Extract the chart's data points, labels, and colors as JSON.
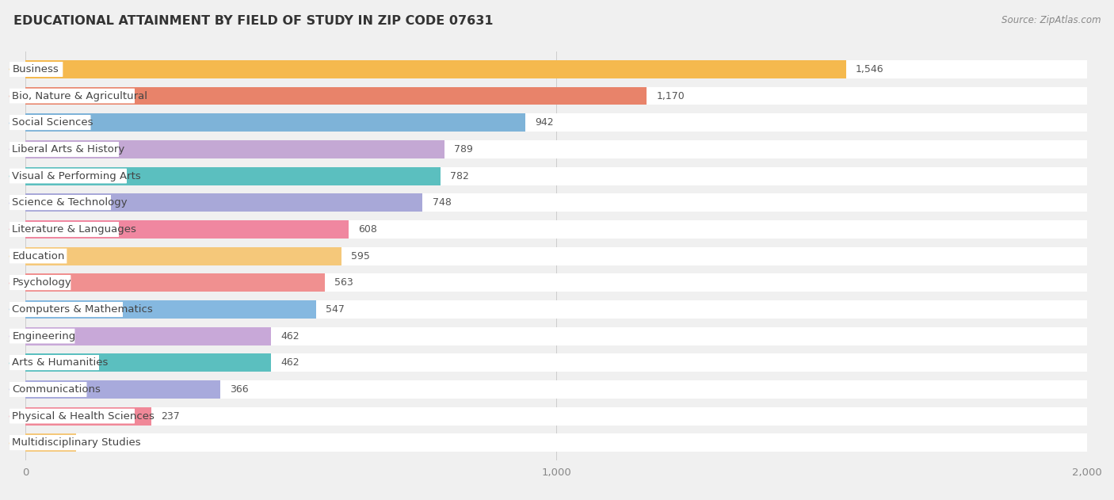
{
  "title": "EDUCATIONAL ATTAINMENT BY FIELD OF STUDY IN ZIP CODE 07631",
  "source": "Source: ZipAtlas.com",
  "categories": [
    "Business",
    "Bio, Nature & Agricultural",
    "Social Sciences",
    "Liberal Arts & History",
    "Visual & Performing Arts",
    "Science & Technology",
    "Literature & Languages",
    "Education",
    "Psychology",
    "Computers & Mathematics",
    "Engineering",
    "Arts & Humanities",
    "Communications",
    "Physical & Health Sciences",
    "Multidisciplinary Studies"
  ],
  "values": [
    1546,
    1170,
    942,
    789,
    782,
    748,
    608,
    595,
    563,
    547,
    462,
    462,
    366,
    237,
    95
  ],
  "bar_colors": [
    "#F5B94E",
    "#E8836A",
    "#7EB3D8",
    "#C4A8D4",
    "#5BBFBF",
    "#A8A8D8",
    "#F087A0",
    "#F5C87A",
    "#F09090",
    "#85B8E0",
    "#C8A8D8",
    "#5BBFBF",
    "#A8AADC",
    "#F08898",
    "#F5C87A"
  ],
  "xlim": [
    0,
    2000
  ],
  "background_color": "#f0f0f0",
  "row_bg_color": "#ffffff",
  "title_fontsize": 11.5,
  "source_fontsize": 8.5,
  "label_fontsize": 9.5,
  "value_fontsize": 9,
  "xtick_values": [
    0,
    1000,
    2000
  ]
}
